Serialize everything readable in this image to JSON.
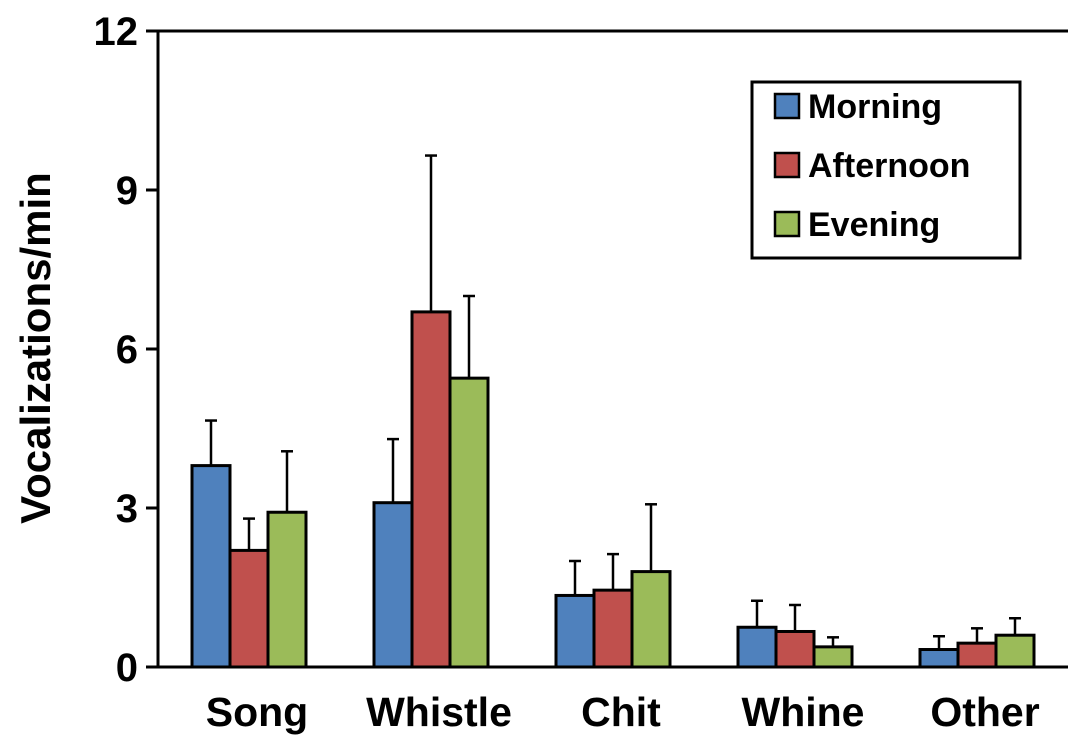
{
  "chart_data": {
    "type": "bar",
    "title": "",
    "xlabel": "",
    "ylabel": "Vocalizations/min",
    "ylim": [
      0,
      12
    ],
    "yticks": [
      0,
      3,
      6,
      9,
      12
    ],
    "grid": false,
    "legend_position": "top-right",
    "categories": [
      "Song",
      "Whistle",
      "Chit",
      "Whine",
      "Other"
    ],
    "series": [
      {
        "name": "Morning",
        "color": "#4f81bd",
        "values": [
          3.8,
          3.1,
          1.35,
          0.75,
          0.33
        ],
        "errors": [
          0.85,
          1.2,
          0.65,
          0.5,
          0.25
        ]
      },
      {
        "name": "Afternoon",
        "color": "#c0504d",
        "values": [
          2.2,
          6.7,
          1.45,
          0.67,
          0.45
        ],
        "errors": [
          0.6,
          2.95,
          0.68,
          0.5,
          0.28
        ]
      },
      {
        "name": "Evening",
        "color": "#9bbb59",
        "values": [
          2.92,
          5.45,
          1.8,
          0.38,
          0.6
        ],
        "errors": [
          1.15,
          1.55,
          1.27,
          0.18,
          0.32
        ]
      }
    ]
  }
}
